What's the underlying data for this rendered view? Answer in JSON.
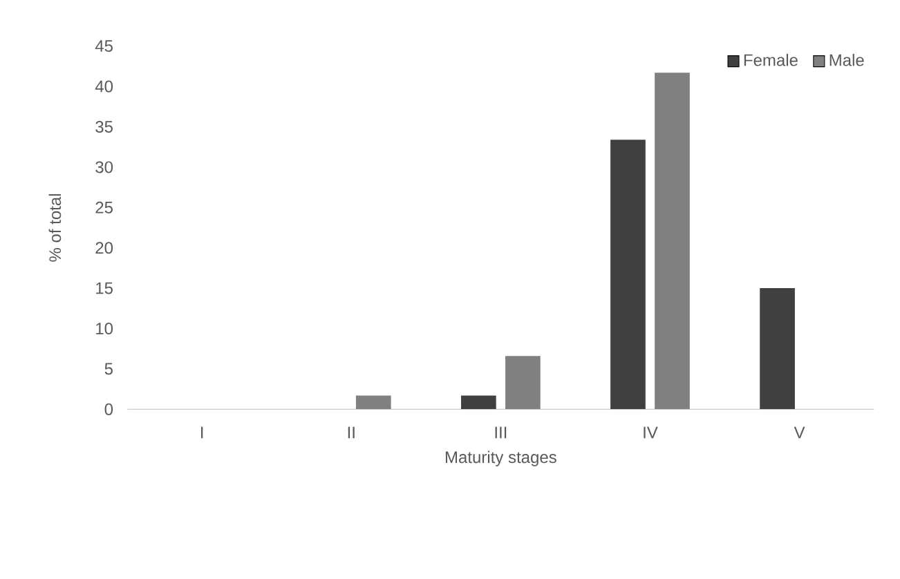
{
  "chart_data": {
    "type": "bar",
    "xlabel": "Maturity stages",
    "ylabel": "% of total",
    "categories": [
      "I",
      "II",
      "III",
      "IV",
      "V"
    ],
    "series": [
      {
        "name": "Female",
        "color": "#404040",
        "values": [
          0,
          0,
          1.7,
          33.4,
          15.0
        ]
      },
      {
        "name": "Male",
        "color": "#808080",
        "values": [
          0,
          1.7,
          6.6,
          41.7,
          0
        ]
      }
    ],
    "ylim": [
      0,
      45
    ],
    "yticks": [
      0,
      5,
      10,
      15,
      20,
      25,
      30,
      35,
      40,
      45
    ],
    "grid": false,
    "legend": "top right"
  }
}
